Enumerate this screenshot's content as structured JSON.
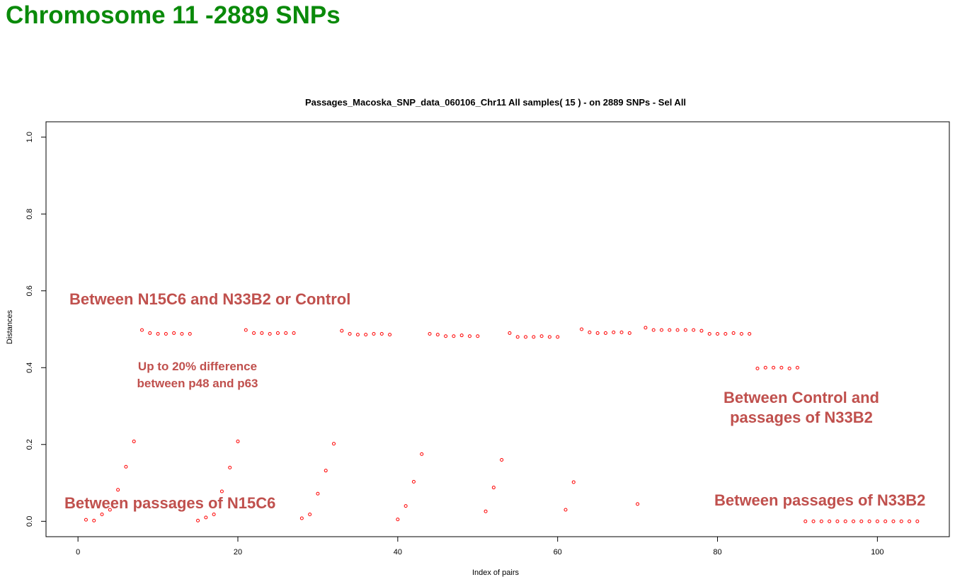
{
  "slide": {
    "title": "Chromosome 11 -2889 SNPs"
  },
  "chart_data": {
    "type": "scatter",
    "title": "Passages_Macoska_SNP_data_060106_Chr11  All samples( 15 ) - on  2889 SNPs - Sel All",
    "xlabel": "Index of pairs",
    "ylabel": "Distances",
    "xlim": [
      -4,
      109
    ],
    "ylim": [
      -0.04,
      1.04
    ],
    "xticks": [
      0,
      20,
      40,
      60,
      80,
      100
    ],
    "yticks": [
      0.0,
      0.2,
      0.4,
      0.6,
      0.8,
      1.0
    ],
    "ytick_labels": [
      "0.0",
      "0.2",
      "0.4",
      "0.6",
      "0.8",
      "1.0"
    ],
    "grid": false,
    "point_color": "#ff0000",
    "x": [
      1,
      2,
      3,
      4,
      5,
      6,
      7,
      8,
      9,
      10,
      11,
      12,
      13,
      14,
      15,
      16,
      17,
      18,
      19,
      20,
      21,
      22,
      23,
      24,
      25,
      26,
      27,
      28,
      29,
      30,
      31,
      32,
      33,
      34,
      35,
      36,
      37,
      38,
      39,
      40,
      41,
      42,
      43,
      44,
      45,
      46,
      47,
      48,
      49,
      50,
      51,
      52,
      53,
      54,
      55,
      56,
      57,
      58,
      59,
      60,
      61,
      62,
      63,
      64,
      65,
      66,
      67,
      68,
      69,
      70,
      71,
      72,
      73,
      74,
      75,
      76,
      77,
      78,
      79,
      80,
      81,
      82,
      83,
      84,
      85,
      86,
      87,
      88,
      89,
      90,
      91,
      92,
      93,
      94,
      95,
      96,
      97,
      98,
      99,
      100,
      101,
      102,
      103,
      104,
      105
    ],
    "y": [
      0.004,
      0.002,
      0.018,
      0.03,
      0.082,
      0.142,
      0.208,
      0.498,
      0.49,
      0.488,
      0.488,
      0.49,
      0.488,
      0.488,
      0.002,
      0.01,
      0.018,
      0.078,
      0.14,
      0.208,
      0.498,
      0.49,
      0.49,
      0.488,
      0.49,
      0.49,
      0.49,
      0.008,
      0.018,
      0.072,
      0.132,
      0.202,
      0.496,
      0.488,
      0.486,
      0.486,
      0.488,
      0.488,
      0.486,
      0.005,
      0.04,
      0.103,
      0.175,
      0.488,
      0.486,
      0.482,
      0.482,
      0.484,
      0.482,
      0.482,
      0.026,
      0.088,
      0.16,
      0.49,
      0.48,
      0.48,
      0.48,
      0.482,
      0.48,
      0.48,
      0.03,
      0.102,
      0.5,
      0.492,
      0.49,
      0.49,
      0.492,
      0.492,
      0.49,
      0.045,
      0.504,
      0.498,
      0.498,
      0.498,
      0.498,
      0.498,
      0.498,
      0.496,
      0.488,
      0.488,
      0.488,
      0.49,
      0.488,
      0.488,
      0.398,
      0.4,
      0.4,
      0.4,
      0.398,
      0.4,
      0.0,
      0.0,
      0.0,
      0.0,
      0.0,
      0.0,
      0.0,
      0.0,
      0.0,
      0.0,
      0.0,
      0.0,
      0.0,
      0.0,
      0.0
    ],
    "annotations": [
      {
        "text": "Between N15C6 and N33B2 or Control",
        "color": "#c0504d"
      },
      {
        "text": "Up to 20% difference",
        "color": "#c0504d"
      },
      {
        "text": "between p48 and p63",
        "color": "#c0504d"
      },
      {
        "text": "Between Control and",
        "color": "#c0504d"
      },
      {
        "text": "passages of N33B2",
        "color": "#c0504d"
      },
      {
        "text": "Between passages of N15C6",
        "color": "#c0504d"
      },
      {
        "text": "Between passages of N33B2",
        "color": "#c0504d"
      }
    ]
  }
}
